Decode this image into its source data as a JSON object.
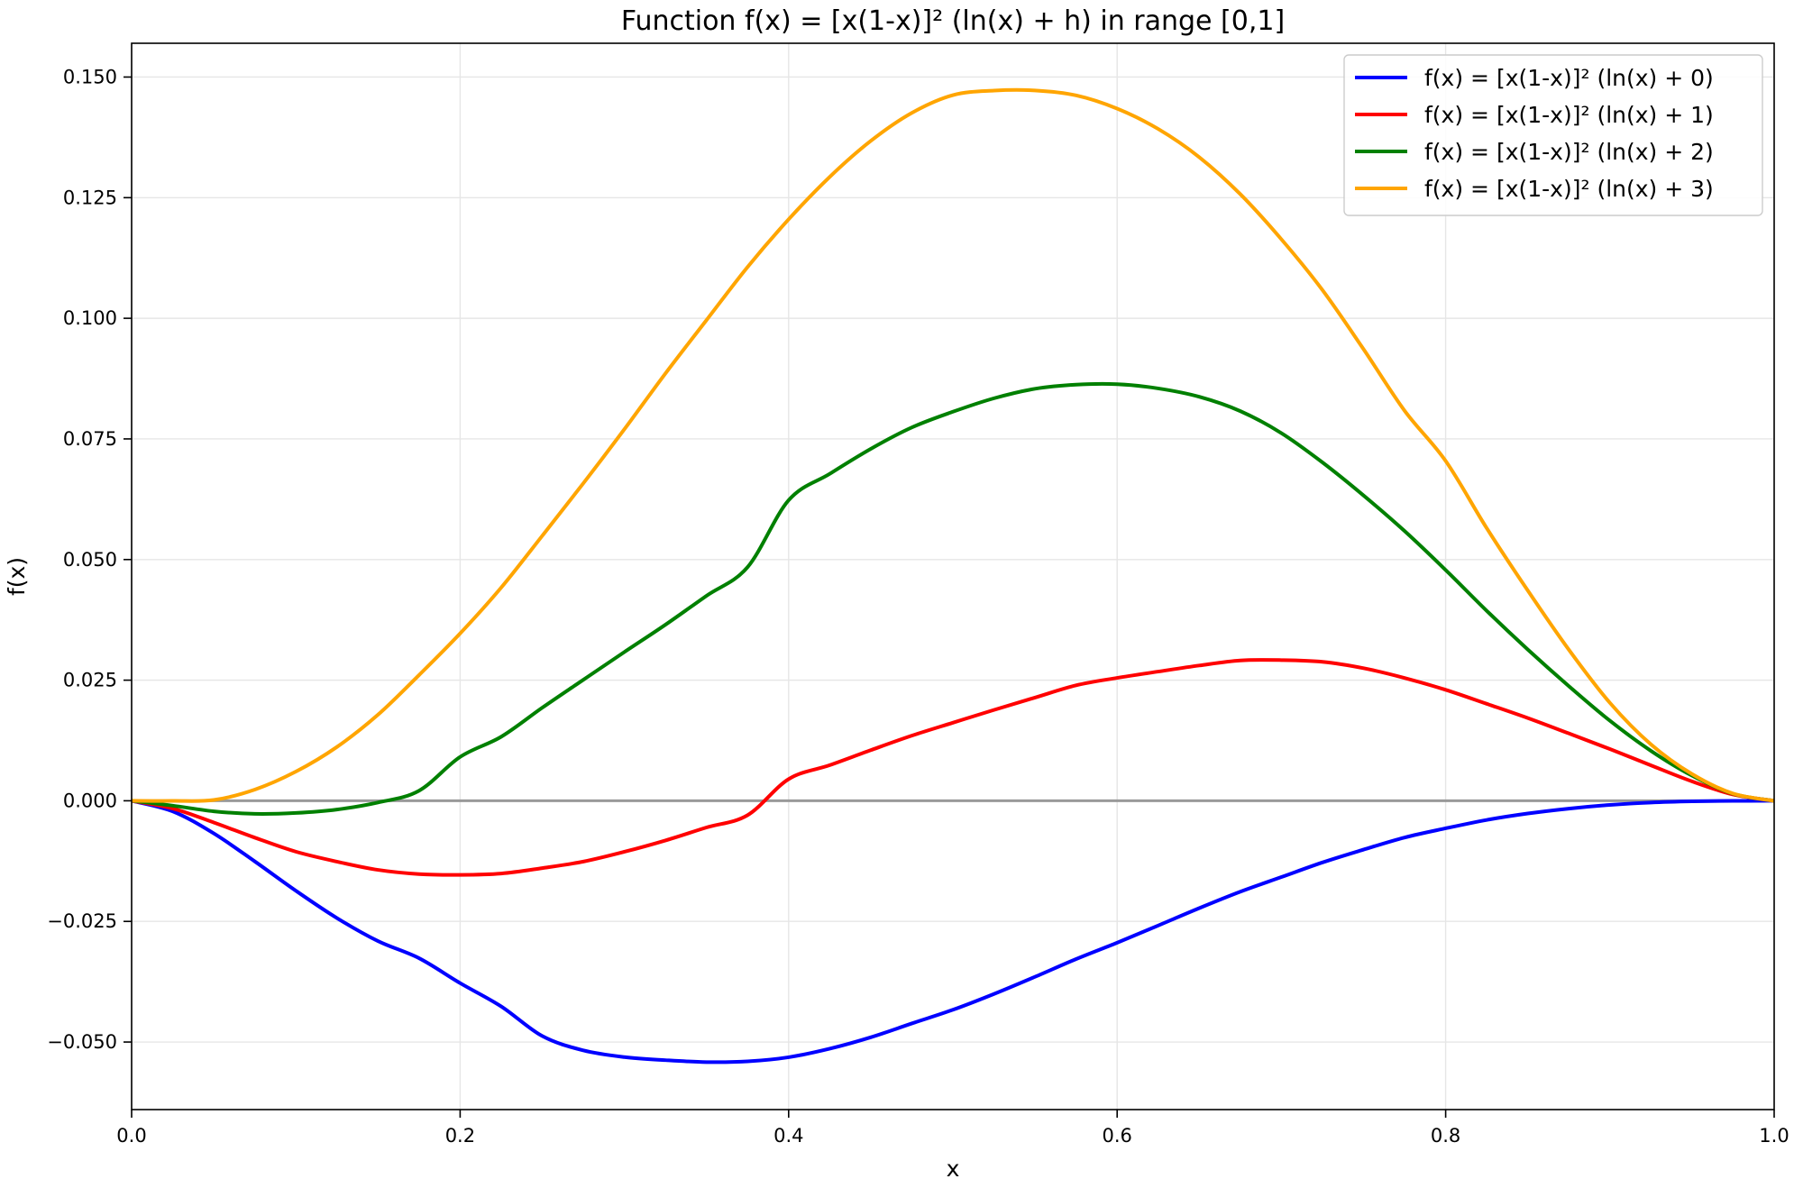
{
  "chart_data": {
    "type": "line",
    "title": "Function f(x) = [x(1-x)]² (ln(x) + h) in range [0,1]",
    "xlabel": "x",
    "ylabel": "f(x)",
    "xlim": [
      0,
      1
    ],
    "ylim": [
      -0.064,
      0.157
    ],
    "x_ticks": [
      0.0,
      0.2,
      0.4,
      0.6,
      0.8,
      1.0
    ],
    "x_tick_labels": [
      "0.0",
      "0.2",
      "0.4",
      "0.6",
      "0.8",
      "1.0"
    ],
    "y_ticks": [
      -0.05,
      -0.025,
      0.0,
      0.025,
      0.05,
      0.075,
      0.1,
      0.125,
      0.15
    ],
    "y_tick_labels": [
      "−0.050",
      "−0.025",
      "0.000",
      "0.025",
      "0.050",
      "0.075",
      "0.100",
      "0.125",
      "0.150"
    ],
    "grid": true,
    "legend_position": "top-right",
    "zero_line": true,
    "x": [
      0.0,
      0.025,
      0.05,
      0.075,
      0.1,
      0.125,
      0.15,
      0.175,
      0.2,
      0.225,
      0.25,
      0.275,
      0.3,
      0.325,
      0.35,
      0.375,
      0.4,
      0.425,
      0.45,
      0.475,
      0.5,
      0.525,
      0.55,
      0.575,
      0.6,
      0.625,
      0.65,
      0.675,
      0.7,
      0.725,
      0.75,
      0.775,
      0.8,
      0.825,
      0.85,
      0.875,
      0.9,
      0.925,
      0.95,
      0.975,
      1.0
    ],
    "series": [
      {
        "name": "f(x) = [x(1-x)]² (ln(x) + 0)",
        "color": "#0000ff",
        "values": [
          0.0,
          -0.00219,
          -0.00676,
          -0.01257,
          -0.01865,
          -0.02431,
          -0.02908,
          -0.03263,
          -0.03779,
          -0.04262,
          -0.04876,
          -0.05173,
          -0.05312,
          -0.05376,
          -0.05416,
          -0.05401,
          -0.05315,
          -0.05138,
          -0.04902,
          -0.04615,
          -0.04332,
          -0.04004,
          -0.03648,
          -0.0328,
          -0.02941,
          -0.02585,
          -0.02225,
          -0.01884,
          -0.01581,
          -0.01278,
          -0.01012,
          -0.00761,
          -0.00571,
          -0.00397,
          -0.00264,
          -0.00162,
          -0.00086,
          -0.00037,
          -0.00012,
          -2e-05,
          0.0
        ]
      },
      {
        "name": "f(x) = [x(1-x)]² (ln(x) + 1)",
        "color": "#ff0000",
        "values": [
          0.0,
          -0.00159,
          -0.0045,
          -0.00764,
          -0.01055,
          -0.01261,
          -0.01432,
          -0.01519,
          -0.01535,
          -0.01507,
          -0.01395,
          -0.0126,
          -0.01057,
          -0.00822,
          -0.00553,
          -0.00298,
          0.00449,
          0.00738,
          0.01049,
          0.0135,
          0.01618,
          0.01883,
          0.02139,
          0.02393,
          0.02547,
          0.02678,
          0.02804,
          0.02908,
          0.02916,
          0.0288,
          0.02748,
          0.02546,
          0.023,
          0.0201,
          0.01715,
          0.01396,
          0.01072,
          0.00734,
          0.00402,
          0.0013,
          0.0
        ]
      },
      {
        "name": "f(x) = [x(1-x)]² (ln(x) + 2)",
        "color": "#008000",
        "values": [
          0.0,
          -0.00101,
          -0.00218,
          -0.00271,
          -0.00252,
          -0.00181,
          -0.00035,
          0.00209,
          0.00909,
          0.01327,
          0.01929,
          0.02508,
          0.03083,
          0.03649,
          0.04249,
          0.04842,
          0.06229,
          0.06776,
          0.07294,
          0.07738,
          0.08063,
          0.08342,
          0.08539,
          0.08624,
          0.08633,
          0.08546,
          0.08373,
          0.08076,
          0.0762,
          0.07013,
          0.06328,
          0.05591,
          0.04783,
          0.03937,
          0.03135,
          0.02376,
          0.01659,
          0.01034,
          0.00521,
          0.00146,
          0.0
        ]
      },
      {
        "name": "f(x) = [x(1-x)]² (ln(x) + 3)",
        "color": "#ffa500",
        "values": [
          0.0,
          -2e-05,
          0.00017,
          0.00232,
          0.00605,
          0.01116,
          0.01784,
          0.02606,
          0.03468,
          0.04419,
          0.05492,
          0.0658,
          0.077,
          0.08857,
          0.09963,
          0.11063,
          0.12051,
          0.1293,
          0.13676,
          0.14257,
          0.14625,
          0.14719,
          0.14722,
          0.1462,
          0.14346,
          0.13924,
          0.13339,
          0.12572,
          0.11637,
          0.10585,
          0.0936,
          0.08084,
          0.07043,
          0.0565,
          0.04357,
          0.0313,
          0.0203,
          0.01168,
          0.00554,
          0.0015,
          0.0
        ]
      }
    ]
  }
}
